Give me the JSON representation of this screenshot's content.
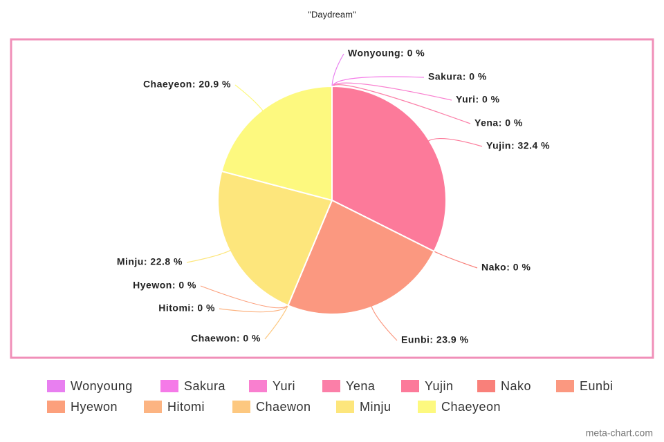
{
  "chart_data": {
    "type": "pie",
    "title": "\"Daydream\"",
    "categories": [
      "Wonyoung",
      "Sakura",
      "Yuri",
      "Yena",
      "Yujin",
      "Nako",
      "Eunbi",
      "Hyewon",
      "Hitomi",
      "Chaewon",
      "Minju",
      "Chaeyeon"
    ],
    "values": [
      0,
      0,
      0,
      0,
      32.4,
      0,
      23.9,
      0,
      0,
      0,
      22.8,
      20.9
    ],
    "value_labels": [
      "Wonyoung: 0 %",
      "Sakura: 0 %",
      "Yuri: 0 %",
      "Yena: 0 %",
      "Yujin: 32.4 %",
      "Nako: 0 %",
      "Eunbi: 23.9 %",
      "Hyewon: 0 %",
      "Hitomi: 0 %",
      "Chaewon: 0 %",
      "Minju: 22.8 %",
      "Chaeyeon: 20.9 %"
    ],
    "colors": [
      "#e87ff0",
      "#f57ae8",
      "#f97fcf",
      "#fb7fa8",
      "#fc7a9a",
      "#f9807a",
      "#fb9880",
      "#fca07c",
      "#fcb482",
      "#fdc880",
      "#fde67c",
      "#fdf97f"
    ],
    "legend": "bottom",
    "source": "meta-chart.com"
  }
}
